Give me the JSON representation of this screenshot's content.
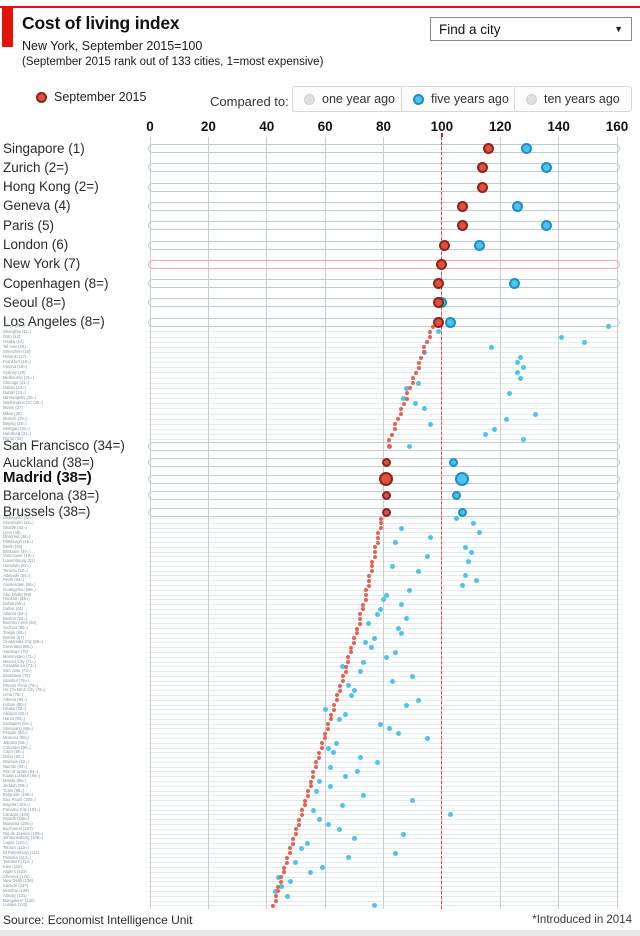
{
  "header": {
    "title": "Cost of living index",
    "subtitle": "New York, September 2015=100",
    "subnote": "(September 2015 rank out of 133 cities, 1=most expensive)",
    "find_city": {
      "label": "Find a city",
      "caret": "▼"
    }
  },
  "legend": {
    "current": {
      "label": "September 2015",
      "color": "#e0503f"
    },
    "compared_to_label": "Compared to:",
    "toggles": [
      {
        "label": "one year ago",
        "active": false,
        "dot_color": "#e0e0e0"
      },
      {
        "label": "five years ago",
        "active": true,
        "dot_color": "#4cc2f1"
      },
      {
        "label": "ten years ago",
        "active": false,
        "dot_color": "#e0e0e0"
      }
    ]
  },
  "footer": {
    "source": "Source: Economist Intelligence Unit",
    "footnote": "*Introduced in 2014"
  },
  "colors": {
    "accent_red": "#e3120b",
    "baseline_red": "#e3423a",
    "dot_red": "#e0503f",
    "dot_red_border": "#8e2317",
    "dot_blue": "#4cc2f1",
    "dot_blue_border": "#1e8fc1",
    "band_border": "#b8cdd9",
    "highlight_band_border": "#f2aaa1",
    "grid": "#c9ced1",
    "small_label": "#8095a7"
  },
  "chart_data": {
    "type": "scatter",
    "title": "Cost of living index",
    "xlabel": "index (New York, September 2015=100)",
    "x_ticks": [
      0,
      20,
      40,
      60,
      80,
      100,
      120,
      140,
      160
    ],
    "x_range": [
      0,
      160
    ],
    "baseline": {
      "value": 100
    },
    "series_labels": [
      "September 2015",
      "five years ago"
    ],
    "row_format": [
      "city_label",
      "september_2015",
      "five_years_ago",
      "dot_px",
      "flag"
    ],
    "groups": [
      {
        "kind": "large",
        "rows": [
          [
            "Singapore (1)",
            116,
            129,
            11
          ],
          [
            "Zurich (2=)",
            114,
            136,
            11
          ],
          [
            "Hong Kong (2=)",
            114,
            null,
            11
          ],
          [
            "Geneva (4)",
            107,
            126,
            11
          ],
          [
            "Paris (5)",
            107,
            136,
            11
          ],
          [
            "London (6)",
            101,
            113,
            11
          ],
          [
            "New York (7)",
            100,
            null,
            11,
            "highlight"
          ],
          [
            "Copenhagen (8=)",
            99,
            125,
            11
          ],
          [
            "Seoul (8=)",
            99,
            100,
            11
          ],
          [
            "Los Angeles (8=)",
            99,
            103,
            11
          ]
        ]
      },
      {
        "kind": "small",
        "rows": [
          [
            "Tokyo (11=)",
            97,
            157
          ],
          [
            "Shanghai (11=)",
            96,
            99
          ],
          [
            "Oslo (13)",
            96,
            141
          ],
          [
            "Osaka (14)",
            95,
            149
          ],
          [
            "Tel Aviv (15)",
            94,
            117
          ],
          [
            "Shenzhen (16)",
            94,
            94
          ],
          [
            "Helsinki (17)",
            93,
            127
          ],
          [
            "Frankfurt (18=)",
            92,
            126
          ],
          [
            "Vienna (18=)",
            92,
            128
          ],
          [
            "Sydney (20)",
            91,
            126
          ],
          [
            "Melbourne (21=)",
            90,
            127
          ],
          [
            "Chicago (21=)",
            90,
            92
          ],
          [
            "Dalian (23=)",
            89,
            88
          ],
          [
            "Dublin (23=)",
            88,
            123
          ],
          [
            "Minneapolis (25=)",
            88,
            87
          ],
          [
            "Washington DC (25=)",
            87,
            91
          ],
          [
            "Miami (27)",
            86,
            94
          ],
          [
            "Milan (28)",
            86,
            132
          ],
          [
            "Munich (29=)",
            85,
            122
          ],
          [
            "Beijing (29=)",
            84,
            96
          ],
          [
            "Stuttgart (31=)",
            84,
            118
          ],
          [
            "Hamburg (31=)",
            83,
            115
          ],
          [
            "Rome (33)",
            82,
            128
          ]
        ]
      },
      {
        "kind": "large",
        "rows": [
          [
            "San Francisco (34=)",
            82,
            89,
            5
          ],
          [
            "Auckland (38=)",
            81,
            104,
            9
          ],
          [
            "Madrid (38=)",
            81,
            107,
            14,
            "selected"
          ],
          [
            "Barcelona (38=)",
            81,
            105,
            9
          ],
          [
            "Brussels (38=)",
            81,
            107,
            9
          ]
        ]
      },
      {
        "kind": "small",
        "rows": [
          [
            "Wellington (42=)",
            79,
            105
          ],
          [
            "Stockholm (42=)",
            79,
            111
          ],
          [
            "Seattle (42=)",
            79,
            86
          ],
          [
            "Lyon (45)",
            78,
            113
          ],
          [
            "Montreal (46=)",
            78,
            96
          ],
          [
            "Pittsburgh (46=)",
            78,
            84
          ],
          [
            "Berlin (48)",
            77,
            108
          ],
          [
            "Brisbane (49=)",
            77,
            110
          ],
          [
            "Vancouver (49=)",
            77,
            95
          ],
          [
            "Luxembourg (51)",
            76,
            109
          ],
          [
            "Honolulu (52=)",
            76,
            83
          ],
          [
            "Toronto (52=)",
            76,
            92
          ],
          [
            "Adelaide (54=)",
            75,
            108
          ],
          [
            "Perth (54=)",
            75,
            112
          ],
          [
            "Amsterdam (56=)",
            75,
            107
          ],
          [
            "Guangzhou (56=)",
            74,
            89
          ],
          [
            "Abu Dhabi (58)",
            74,
            81
          ],
          [
            "Houston (59=)",
            74,
            80
          ],
          [
            "Dubai (59=)",
            73,
            86
          ],
          [
            "Dallas (61)",
            73,
            79
          ],
          [
            "Atlanta (62=)",
            72,
            78
          ],
          [
            "Boston (62=)",
            72,
            88
          ],
          [
            "Buenos Aires (64)",
            72,
            75
          ],
          [
            "Suzhou (65=)",
            71,
            85
          ],
          [
            "Tianjin (65=)",
            71,
            86
          ],
          [
            "Detroit (67)",
            70,
            77
          ],
          [
            "Guatemala City (68=)",
            70,
            74
          ],
          [
            "Cleveland (68=)",
            69,
            76
          ],
          [
            "Santiago (70)",
            69,
            84
          ],
          [
            "Montevideo (71=)",
            68,
            81
          ],
          [
            "Mexico City (71=)",
            68,
            73
          ],
          [
            "Casablanca (73=)",
            67,
            66
          ],
          [
            "San Jose (73=)",
            67,
            72
          ],
          [
            "Bratislava (75)",
            66,
            90
          ],
          [
            "Istanbul (76=)",
            66,
            83
          ],
          [
            "Phnom Penh (76=)",
            65,
            68
          ],
          [
            "Ho Chi Minh City (78=)",
            65,
            70
          ],
          [
            "Lima (78=)",
            64,
            69
          ],
          [
            "Athens (80=)",
            64,
            92
          ],
          [
            "Lisbon (80=)",
            63,
            88
          ],
          [
            "Dhaka (82=)",
            63,
            60
          ],
          [
            "Abidjan (82=)",
            62,
            67
          ],
          [
            "Hanoi (84=)",
            62,
            65
          ],
          [
            "Budapest (84=)",
            61,
            79
          ],
          [
            "Shenyang (86=)",
            61,
            82
          ],
          [
            "Prague (86=)",
            60,
            85
          ],
          [
            "Moscow (88=)",
            60,
            95
          ],
          [
            "Jakarta (88=)",
            59,
            64
          ],
          [
            "Colombo (90=)",
            59,
            61
          ],
          [
            "Cairo (90=)",
            58,
            63
          ],
          [
            "Doha (92=)",
            58,
            72
          ],
          [
            "Warsaw (92=)",
            57,
            78
          ],
          [
            "Nairobi (94=)",
            57,
            62
          ],
          [
            "Port of Spain (94=)",
            56,
            71
          ],
          [
            "Kuala Lumpur (96=)",
            56,
            67
          ],
          [
            "Manila (96=)",
            55,
            58
          ],
          [
            "Jeddah (98=)",
            55,
            62
          ],
          [
            "Tunis (98=)",
            54,
            57
          ],
          [
            "Belgrade (100=)",
            54,
            73
          ],
          [
            "Sao Paulo (100=)",
            53,
            90
          ],
          [
            "Bogota (102=)",
            53,
            66
          ],
          [
            "Panama City (102=)",
            52,
            56
          ],
          [
            "Caracas (104)",
            52,
            103
          ],
          [
            "Riyadh (105=)",
            51,
            58
          ],
          [
            "Manama (105=)",
            51,
            61
          ],
          [
            "Bucharest (107)",
            50,
            65
          ],
          [
            "Rio de Janeiro (108=)",
            50,
            87
          ],
          [
            "Johannesburg (108=)",
            49,
            70
          ],
          [
            "Lagos (110=)",
            49,
            54
          ],
          [
            "Tehran (110=)",
            48,
            52
          ],
          [
            "St Petersburg (112)",
            48,
            84
          ],
          [
            "Pretoria (113=)",
            47,
            68
          ],
          [
            "Tashkent (113=)",
            47,
            50
          ],
          [
            "Kiev (119)",
            46,
            59
          ],
          [
            "Algiers (123)",
            46,
            55
          ],
          [
            "Chennai (125)",
            45,
            44
          ],
          [
            "New Delhi (126)",
            45,
            48
          ],
          [
            "Karachi (127)",
            44,
            45
          ],
          [
            "Mumbai (129)",
            44,
            43
          ],
          [
            "Almaty (131)",
            43,
            47
          ],
          [
            "Bangalore* (132)",
            43,
            null
          ],
          [
            "Lusaka (133)",
            42,
            77
          ]
        ]
      }
    ]
  }
}
